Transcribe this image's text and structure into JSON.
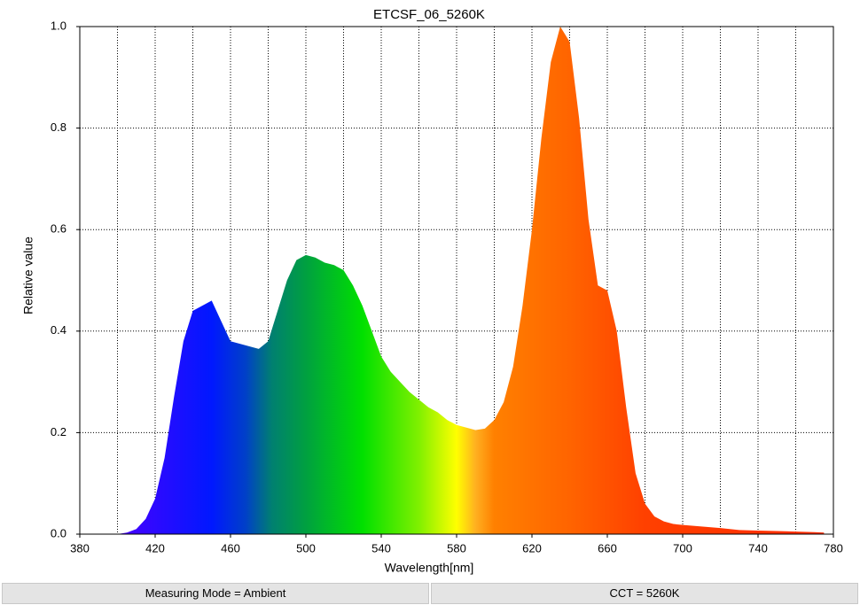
{
  "chart_data": {
    "type": "area",
    "title": "ETCSF_06_5260K",
    "x_label": "Wavelength[nm]",
    "y_label": "Relative value",
    "x": [
      400,
      405,
      410,
      415,
      420,
      425,
      430,
      435,
      440,
      445,
      450,
      455,
      460,
      465,
      470,
      475,
      480,
      485,
      490,
      495,
      500,
      505,
      510,
      515,
      520,
      525,
      530,
      535,
      540,
      545,
      550,
      555,
      560,
      565,
      570,
      575,
      580,
      585,
      590,
      595,
      600,
      605,
      610,
      615,
      620,
      625,
      630,
      635,
      640,
      645,
      650,
      655,
      660,
      665,
      670,
      675,
      680,
      685,
      690,
      695,
      700,
      710,
      720,
      730,
      740,
      750,
      760,
      770,
      775
    ],
    "values": [
      0,
      0.003,
      0.01,
      0.03,
      0.07,
      0.15,
      0.27,
      0.38,
      0.44,
      0.45,
      0.46,
      0.42,
      0.38,
      0.375,
      0.37,
      0.365,
      0.38,
      0.44,
      0.5,
      0.54,
      0.55,
      0.545,
      0.535,
      0.53,
      0.52,
      0.49,
      0.45,
      0.4,
      0.35,
      0.32,
      0.3,
      0.28,
      0.265,
      0.25,
      0.24,
      0.225,
      0.215,
      0.21,
      0.205,
      0.208,
      0.225,
      0.26,
      0.33,
      0.45,
      0.6,
      0.78,
      0.93,
      1.0,
      0.97,
      0.82,
      0.62,
      0.49,
      0.48,
      0.4,
      0.25,
      0.12,
      0.06,
      0.035,
      0.025,
      0.02,
      0.018,
      0.015,
      0.012,
      0.008,
      0.007,
      0.006,
      0.005,
      0.004,
      0.003
    ],
    "xlim": [
      380,
      780
    ],
    "ylim": [
      0,
      1
    ],
    "xticks": [
      380,
      420,
      460,
      500,
      540,
      580,
      620,
      660,
      700,
      740,
      780
    ],
    "xminorgrid": [
      400,
      440,
      480,
      520,
      560,
      600,
      640,
      680,
      720,
      760
    ],
    "yticks": [
      {
        "value": 0,
        "label": "0.0"
      },
      0.2,
      0.4,
      0.6,
      0.8,
      {
        "value": 1,
        "label": "1.0"
      }
    ],
    "grid": true,
    "gradient_stops": [
      {
        "x": 400,
        "color": "#4a00ff"
      },
      {
        "x": 450,
        "color": "#0018ff"
      },
      {
        "x": 468,
        "color": "#0040c8"
      },
      {
        "x": 482,
        "color": "#008070"
      },
      {
        "x": 500,
        "color": "#00a040"
      },
      {
        "x": 530,
        "color": "#00e000"
      },
      {
        "x": 560,
        "color": "#80f000"
      },
      {
        "x": 580,
        "color": "#ffff00"
      },
      {
        "x": 590,
        "color": "#ffb020"
      },
      {
        "x": 600,
        "color": "#ff8000"
      },
      {
        "x": 640,
        "color": "#ff6400"
      },
      {
        "x": 680,
        "color": "#ff4000"
      },
      {
        "x": 775,
        "color": "#ff2a00"
      }
    ]
  },
  "footer": {
    "buttons": [
      "Measuring Mode = Ambient",
      "CCT = 5260K"
    ]
  }
}
